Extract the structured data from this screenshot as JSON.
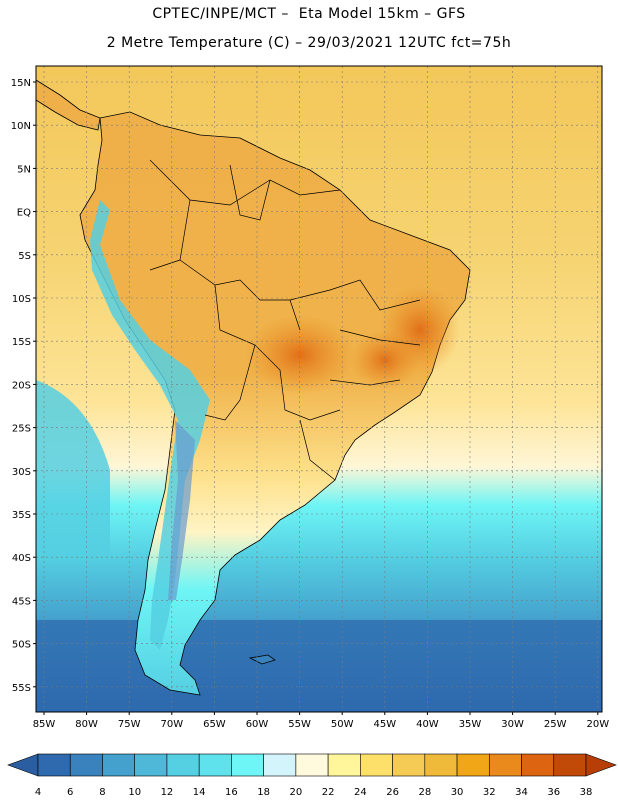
{
  "header": {
    "line1": "CPTEC/INPE/MCT –  Eta Model 15km – GFS",
    "line2": "2 Metre Temperature (C) – 29/03/2021 12UTC fct=75h"
  },
  "axes": {
    "lat_labels": [
      "15N",
      "10N",
      "5N",
      "EQ",
      "5S",
      "10S",
      "15S",
      "20S",
      "25S",
      "30S",
      "35S",
      "40S",
      "45S",
      "50S",
      "55S"
    ],
    "lon_labels": [
      "85W",
      "80W",
      "75W",
      "70W",
      "65W",
      "60W",
      "55W",
      "50W",
      "45W",
      "40W",
      "35W",
      "30W",
      "25W",
      "20W"
    ]
  },
  "colorbar": {
    "labels": [
      "4",
      "6",
      "8",
      "10",
      "12",
      "14",
      "16",
      "18",
      "20",
      "22",
      "24",
      "26",
      "28",
      "30",
      "32",
      "34",
      "36",
      "38"
    ],
    "colors": [
      "#2e6aad",
      "#3a82bd",
      "#44a0cc",
      "#4fb8d8",
      "#55cfe2",
      "#5fe2ec",
      "#6ef5f5",
      "#d4f4fb",
      "#fff9de",
      "#fff59a",
      "#fde06a",
      "#f5cb55",
      "#efb93a",
      "#f0a616",
      "#ea8a1c",
      "#dd6410",
      "#c24a08"
    ],
    "under_color": "#2a5ea0",
    "over_color": "#b83e08"
  },
  "colors": {
    "ocean_tropical": "#f5d06a",
    "ocean_mid": "#fde497",
    "ocean_temperate": "#55cfe2",
    "ocean_cold": "#3a82bd",
    "land_hot": "#efb04a",
    "andes": "#55cfe2",
    "gridline": "#7a7a7a"
  }
}
